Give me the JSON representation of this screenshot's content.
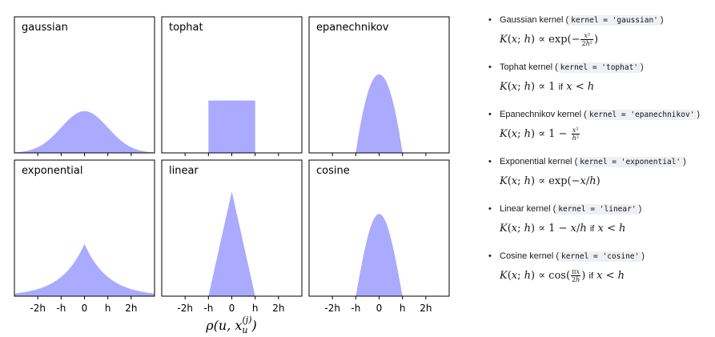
{
  "chart_data": [
    {
      "type": "area",
      "title": "gaussian",
      "kernel": "gaussian",
      "x": [
        -3,
        -2,
        -1,
        0,
        1,
        2,
        3
      ],
      "y_peak": 0.4,
      "xlim": [
        -3,
        3
      ],
      "ylim": [
        0,
        1.3
      ]
    },
    {
      "type": "area",
      "title": "tophat",
      "kernel": "tophat",
      "x": [
        -1,
        1
      ],
      "y_peak": 0.5,
      "xlim": [
        -3,
        3
      ],
      "ylim": [
        0,
        1.3
      ]
    },
    {
      "type": "area",
      "title": "epanechnikov",
      "kernel": "epanechnikov",
      "x": [
        -1,
        0,
        1
      ],
      "y_peak": 0.75,
      "xlim": [
        -3,
        3
      ],
      "ylim": [
        0,
        1.3
      ]
    },
    {
      "type": "area",
      "title": "exponential",
      "kernel": "exponential",
      "x": [
        -3,
        0,
        3
      ],
      "y_peak": 0.5,
      "xlim": [
        -3,
        3
      ],
      "ylim": [
        0,
        1.3
      ]
    },
    {
      "type": "area",
      "title": "linear",
      "kernel": "linear",
      "x": [
        -1,
        0,
        1
      ],
      "y_peak": 1.0,
      "xlim": [
        -3,
        3
      ],
      "ylim": [
        0,
        1.3
      ]
    },
    {
      "type": "area",
      "title": "cosine",
      "kernel": "cosine",
      "x": [
        -1,
        0,
        1
      ],
      "y_peak": 0.785,
      "xlim": [
        -3,
        3
      ],
      "ylim": [
        0,
        1.3
      ]
    }
  ],
  "axis": {
    "tick_labels": [
      "-2h",
      "-h",
      "0",
      "h",
      "2h"
    ],
    "tick_values": [
      -2,
      -1,
      0,
      1,
      2
    ],
    "xlabel": "ρ(u, x_u^(j))"
  },
  "colors": {
    "fill": "#aaaaff",
    "frame": "#000000",
    "code_bg": "#eef0f3"
  },
  "kernels": [
    {
      "name": "Gaussian kernel",
      "code": "kernel = 'gaussian'",
      "formula": "K(x;h) ∝ exp(−x²/2h²)"
    },
    {
      "name": "Tophat kernel",
      "code": "kernel = 'tophat'",
      "formula": "K(x;h) ∝ 1 if x < h"
    },
    {
      "name": "Epanechnikov kernel",
      "code": "kernel = 'epanechnikov'",
      "formula": "K(x;h) ∝ 1 − x²/h²"
    },
    {
      "name": "Exponential kernel",
      "code": "kernel = 'exponential'",
      "formula": "K(x;h) ∝ exp(−x/h)"
    },
    {
      "name": "Linear kernel",
      "code": "kernel = 'linear'",
      "formula": "K(x;h) ∝ 1 − x/h if x < h"
    },
    {
      "name": "Cosine kernel",
      "code": "kernel = 'cosine'",
      "formula": "K(x;h) ∝ cos(πx/2h) if x < h"
    }
  ]
}
